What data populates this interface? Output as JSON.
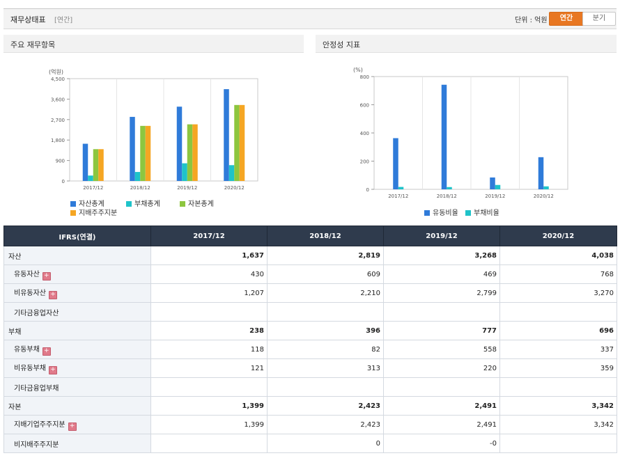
{
  "header": {
    "title": "재무상태표",
    "period_tag": "[연간]",
    "unit_label": "단위 : 억원",
    "tab_yearly": "연간",
    "tab_quarterly": "분기"
  },
  "colors": {
    "series_blue": "#2f7bd9",
    "series_teal": "#1fc3c9",
    "series_green": "#8dc63f",
    "series_orange": "#f5a623",
    "accent_orange": "#e87722",
    "table_header": "#2f3b4d",
    "negative_red": "#d00000"
  },
  "panels": {
    "left_title": "주요 재무항목",
    "right_title": "안정성 지표"
  },
  "chart_data": [
    {
      "type": "bar",
      "title": "",
      "ylabel": "(억원)",
      "categories": [
        "2017/12",
        "2018/12",
        "2019/12",
        "2020/12"
      ],
      "ylim": [
        0,
        4500
      ],
      "yticks": [
        "0",
        "900",
        "1,800",
        "2,700",
        "3,600",
        "4,500"
      ],
      "yticks_values": [
        0,
        900,
        1800,
        2700,
        3600,
        4500
      ],
      "grid": false,
      "legend_position": "bottom",
      "series": [
        {
          "name": "자산총계",
          "color": "#2f7bd9",
          "values": [
            1637,
            2819,
            3268,
            4038
          ]
        },
        {
          "name": "부채총계",
          "color": "#1fc3c9",
          "values": [
            238,
            396,
            777,
            696
          ]
        },
        {
          "name": "자본총계",
          "color": "#8dc63f",
          "values": [
            1399,
            2423,
            2491,
            3342
          ]
        },
        {
          "name": "지배주주지분",
          "color": "#f5a623",
          "values": [
            1399,
            2423,
            2491,
            3342
          ]
        }
      ]
    },
    {
      "type": "bar",
      "title": "",
      "ylabel": "(%)",
      "categories": [
        "2017/12",
        "2018/12",
        "2019/12",
        "2020/12"
      ],
      "ylim": [
        0,
        800
      ],
      "yticks": [
        "0",
        "200",
        "400",
        "600",
        "800"
      ],
      "yticks_values": [
        0,
        200,
        400,
        600,
        800
      ],
      "grid": false,
      "legend_position": "bottom",
      "series": [
        {
          "name": "유동비율",
          "color": "#2f7bd9",
          "values": [
            363,
            742,
            84,
            228
          ]
        },
        {
          "name": "부채비율",
          "color": "#1fc3c9",
          "values": [
            17,
            16,
            31,
            21
          ]
        }
      ]
    }
  ],
  "table": {
    "header": [
      "IFRS(연결)",
      "2017/12",
      "2018/12",
      "2019/12",
      "2020/12"
    ],
    "rows": [
      {
        "label": "자산",
        "level": "major",
        "expand": false,
        "values": [
          "1,637",
          "2,819",
          "3,268",
          "4,038"
        ]
      },
      {
        "label": "유동자산",
        "level": "sub",
        "expand": true,
        "values": [
          "430",
          "609",
          "469",
          "768"
        ]
      },
      {
        "label": "비유동자산",
        "level": "sub",
        "expand": true,
        "values": [
          "1,207",
          "2,210",
          "2,799",
          "3,270"
        ]
      },
      {
        "label": "기타금융업자산",
        "level": "sub",
        "expand": false,
        "values": [
          "",
          "",
          "",
          ""
        ]
      },
      {
        "label": "부채",
        "level": "major",
        "expand": false,
        "values": [
          "238",
          "396",
          "777",
          "696"
        ]
      },
      {
        "label": "유동부채",
        "level": "sub",
        "expand": true,
        "values": [
          "118",
          "82",
          "558",
          "337"
        ]
      },
      {
        "label": "비유동부채",
        "level": "sub",
        "expand": true,
        "values": [
          "121",
          "313",
          "220",
          "359"
        ]
      },
      {
        "label": "기타금융업부채",
        "level": "sub",
        "expand": false,
        "values": [
          "",
          "",
          "",
          ""
        ]
      },
      {
        "label": "자본",
        "level": "major",
        "expand": false,
        "values": [
          "1,399",
          "2,423",
          "2,491",
          "3,342"
        ]
      },
      {
        "label": "지배기업주주지분",
        "level": "sub",
        "expand": true,
        "values": [
          "1,399",
          "2,423",
          "2,491",
          "3,342"
        ]
      },
      {
        "label": "비지배주주지분",
        "level": "sub",
        "expand": false,
        "values": [
          "",
          "0",
          "-0",
          ""
        ]
      }
    ]
  }
}
